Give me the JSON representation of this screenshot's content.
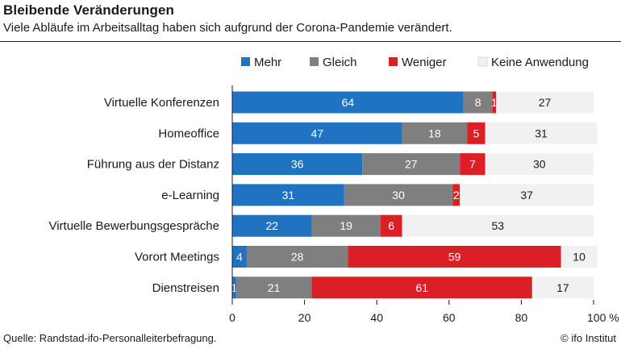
{
  "header": {
    "title": "Bleibende Veränderungen",
    "subtitle": "Viele Abläufe im Arbeitsalltag haben sich aufgrund der Corona-Pandemie verändert."
  },
  "footer": {
    "source": "Quelle: Randstad-ifo-Personalleiterbefragung.",
    "credit": "© ifo Institut"
  },
  "chart_data": {
    "type": "bar",
    "orientation": "horizontal",
    "stacked": true,
    "categories": [
      "Virtuelle Konferenzen",
      "Homeoffice",
      "Führung aus der Distanz",
      "e-Learning",
      "Virtuelle Bewerbungsgespräche",
      "Vorort Meetings",
      "Dienstreisen"
    ],
    "series": [
      {
        "name": "Mehr",
        "color": "#1f73c1",
        "values": [
          64,
          47,
          36,
          31,
          22,
          4,
          1
        ]
      },
      {
        "name": "Gleich",
        "color": "#7f7f7f",
        "values": [
          8,
          18,
          27,
          30,
          19,
          28,
          21
        ]
      },
      {
        "name": "Weniger",
        "color": "#dc1f26",
        "values": [
          1,
          5,
          7,
          2,
          6,
          59,
          61
        ]
      },
      {
        "name": "Keine Anwendung",
        "color": "#f1f1f1",
        "values": [
          27,
          31,
          30,
          37,
          53,
          10,
          17
        ]
      }
    ],
    "xlim": [
      0,
      100
    ],
    "xticks": [
      "0",
      "20",
      "40",
      "60",
      "80",
      "100 %"
    ],
    "legend_position": "top",
    "grid": false
  }
}
